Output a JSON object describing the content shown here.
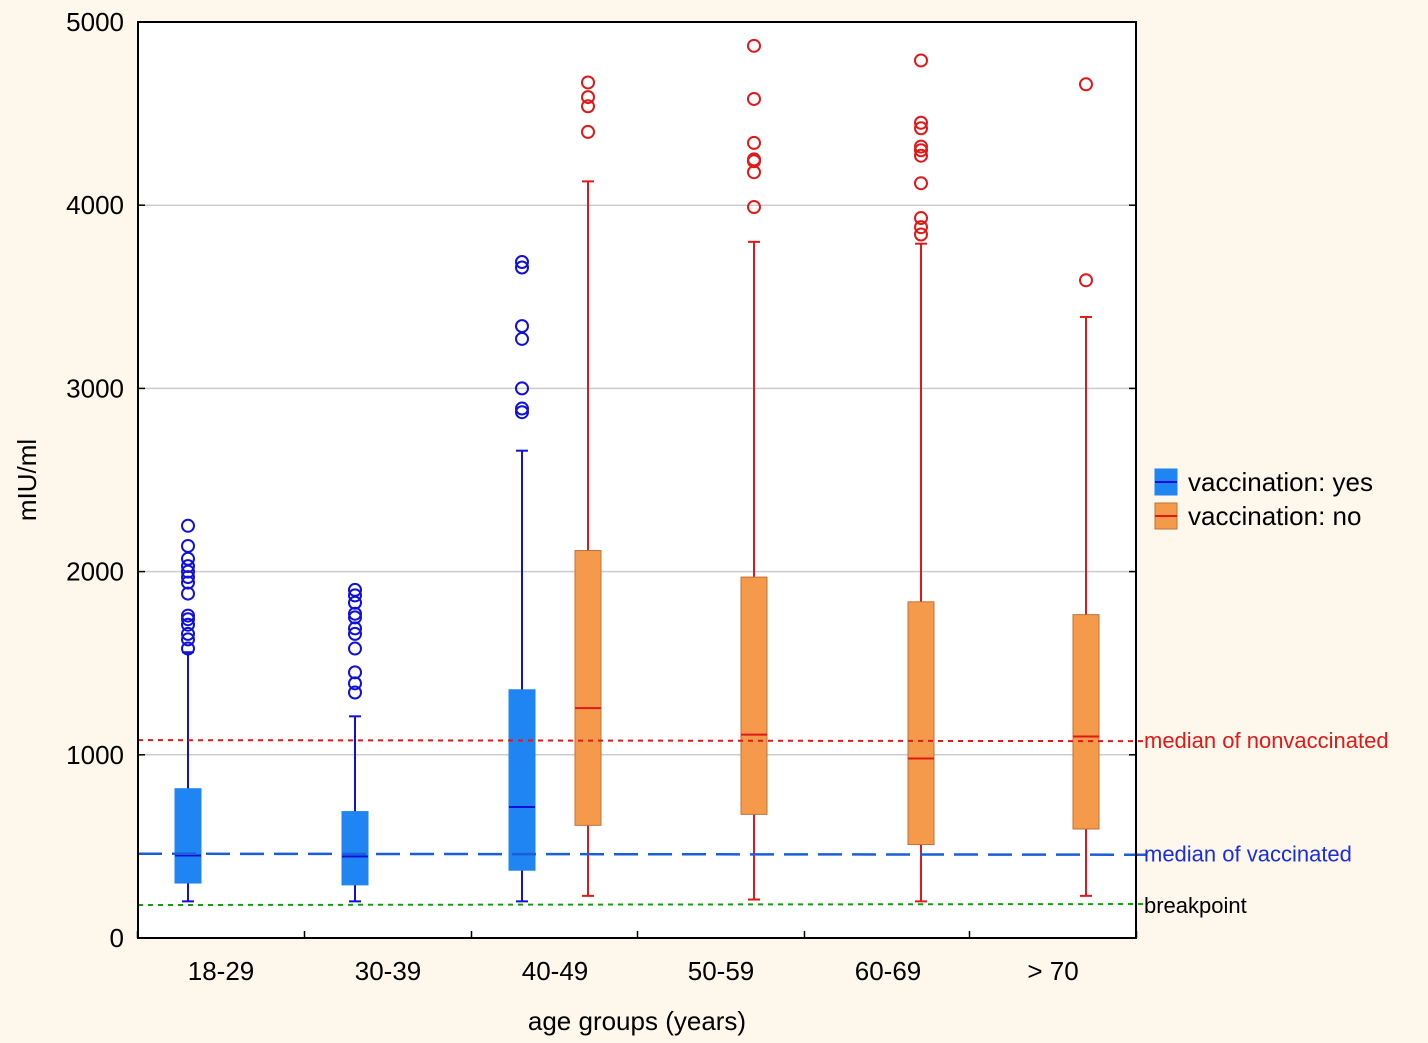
{
  "chart_data": {
    "type": "box",
    "title": "",
    "xlabel": "age groups (years)",
    "ylabel": "mIU/ml",
    "ylim": [
      0,
      5000
    ],
    "y_ticks": [
      0,
      1000,
      2000,
      3000,
      4000,
      5000
    ],
    "grid": true,
    "legend_position": "right",
    "categories": [
      "18-29",
      "30-39",
      "40-49",
      "50-59",
      "60-69",
      "> 70"
    ],
    "colors": {
      "vaccinated_fill": "#1f85f2",
      "vaccinated_line": "#1010d8",
      "nonvaccinated_fill": "#f49a4a",
      "nonvaccinated_line": "#e01818",
      "breakpoint_line": "#12a012",
      "grid": "#cccccc"
    },
    "series": [
      {
        "name": "vaccination: yes",
        "boxes": [
          {
            "category": "18-29",
            "whisker_low": 200,
            "q1": 300,
            "median": 450,
            "q3": 815,
            "whisker_high": 1560,
            "outliers": [
              1580,
              1630,
              1660,
              1710,
              1740,
              1760,
              1880,
              1940,
              1970,
              2000,
              2030,
              2070,
              2140,
              2250
            ]
          },
          {
            "category": "30-39",
            "whisker_low": 200,
            "q1": 290,
            "median": 445,
            "q3": 690,
            "whisker_high": 1210,
            "outliers": [
              1340,
              1390,
              1450,
              1580,
              1660,
              1690,
              1750,
              1770,
              1830,
              1870,
              1900
            ]
          },
          {
            "category": "40-49",
            "whisker_low": 200,
            "q1": 370,
            "median": 715,
            "q3": 1355,
            "whisker_high": 2660,
            "outliers": [
              2870,
              2890,
              3000,
              3270,
              3340,
              3660,
              3690
            ]
          }
        ]
      },
      {
        "name": "vaccination: no",
        "boxes": [
          {
            "category": "40-49",
            "whisker_low": 230,
            "q1": 615,
            "median": 1255,
            "q3": 2115,
            "whisker_high": 4130,
            "outliers": [
              4400,
              4540,
              4590,
              4670
            ]
          },
          {
            "category": "50-59",
            "whisker_low": 210,
            "q1": 675,
            "median": 1110,
            "q3": 1970,
            "whisker_high": 3800,
            "outliers": [
              3990,
              4180,
              4240,
              4250,
              4340,
              4580,
              4870
            ]
          },
          {
            "category": "60-69",
            "whisker_low": 200,
            "q1": 510,
            "median": 980,
            "q3": 1835,
            "whisker_high": 3790,
            "outliers": [
              3840,
              3880,
              3930,
              4120,
              4270,
              4300,
              4320,
              4420,
              4450,
              4790
            ]
          },
          {
            "category": "> 70",
            "whisker_low": 230,
            "q1": 595,
            "median": 1100,
            "q3": 1765,
            "whisker_high": 3390,
            "outliers": [
              3590,
              4660
            ]
          }
        ]
      }
    ],
    "reference_lines": [
      {
        "label": "median of nonvaccinated",
        "value": 1080,
        "style": "dotted",
        "color": "#e01818"
      },
      {
        "label": "median of vaccinated",
        "value": 460,
        "style": "dashed",
        "color": "#1a5fd8"
      },
      {
        "label": "breakpoint",
        "value": 180,
        "style": "dotted",
        "color": "#12a012"
      }
    ]
  }
}
